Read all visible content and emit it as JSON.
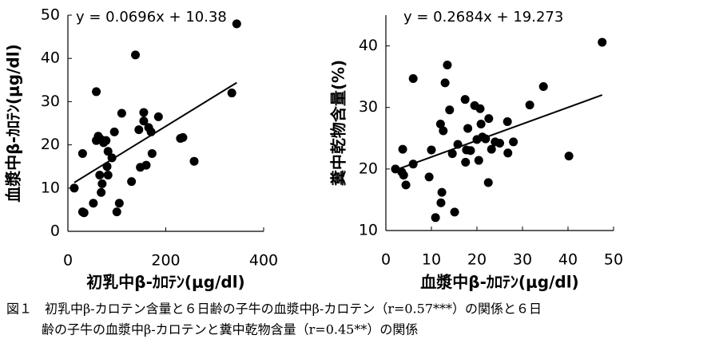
{
  "chart_data": [
    {
      "type": "scatter",
      "color": "#000000",
      "xlabel": "初乳中β-ｶﾛﾃﾝ(μg/dl)",
      "ylabel": "血漿中β-ｶﾛﾃﾝ(μg/dl)",
      "trendline": {
        "label": "y = 0.0696x + 10.38",
        "slope": 0.0696,
        "intercept": 10.38
      },
      "xlim": [
        0,
        400
      ],
      "xticks": [
        0,
        200,
        400
      ],
      "ylim": [
        0,
        50
      ],
      "yticks": [
        0,
        10,
        20,
        30,
        40,
        50
      ],
      "x": [
        13,
        30,
        33,
        30,
        52,
        58,
        58,
        62,
        65,
        65,
        68,
        70,
        72,
        73,
        78,
        80,
        82,
        82,
        90,
        95,
        100,
        105,
        110,
        130,
        138,
        145,
        148,
        155,
        155,
        160,
        165,
        170,
        172,
        185,
        230,
        235,
        258,
        335,
        345
      ],
      "values": [
        10,
        4.5,
        4.3,
        18,
        6.5,
        32.3,
        21,
        22,
        21.5,
        13,
        9,
        11,
        21,
        20.5,
        21,
        15,
        13,
        18.5,
        17,
        23,
        4.5,
        6.5,
        27.3,
        11.5,
        40.8,
        23.5,
        14.8,
        25.5,
        27.5,
        15.3,
        24,
        23,
        18,
        26.5,
        21.5,
        21.7,
        16.2,
        32,
        48
      ]
    },
    {
      "type": "scatter",
      "color": "#000000",
      "xlabel": "血漿中β-ｶﾛﾃﾝ(μg/dl)",
      "ylabel": "糞中乾物含量(%)",
      "trendline": {
        "label": "y = 0.2684x + 19.273",
        "slope": 0.2684,
        "intercept": 19.273
      },
      "xlim": [
        0,
        50
      ],
      "xticks": [
        0,
        10,
        20,
        30,
        40,
        50
      ],
      "ylim": [
        10,
        45
      ],
      "yticks": [
        10,
        20,
        30,
        40
      ],
      "x": [
        2.1,
        3.5,
        3.7,
        3.9,
        4.4,
        6,
        6,
        9.5,
        10,
        10.9,
        12,
        12.3,
        12.1,
        12.6,
        13,
        13.5,
        14,
        14.6,
        15.1,
        15.8,
        17.4,
        17.5,
        17.7,
        18,
        18.6,
        19.5,
        20,
        20.4,
        20.7,
        20.9,
        21.2,
        21.9,
        22.5,
        22.6,
        23.2,
        24,
        25,
        26.7,
        26.8,
        28,
        31.6,
        34.6,
        40.2,
        47.5
      ],
      "values": [
        20,
        19.5,
        23.2,
        19,
        17.4,
        34.7,
        20.8,
        18.7,
        23.1,
        12.1,
        27.3,
        16.2,
        14.5,
        26.2,
        34,
        36.9,
        29.6,
        22.5,
        13,
        24,
        31.3,
        21.1,
        23.1,
        26.6,
        23,
        30.3,
        24.8,
        21.4,
        29.8,
        27.3,
        25.2,
        24.9,
        17.8,
        28.2,
        23.2,
        24.4,
        24.2,
        27.7,
        22.6,
        24.4,
        30.4,
        33.4,
        22.1,
        40.6
      ]
    }
  ],
  "caption": [
    "図１　初乳中β-カロテン含量と６日齢の子牛の血漿中β-カロテン（r=0.57***）の関係と６日",
    "齢の子牛の血漿中β-カロテンと糞中乾物含量（r=0.45**）の関係"
  ]
}
